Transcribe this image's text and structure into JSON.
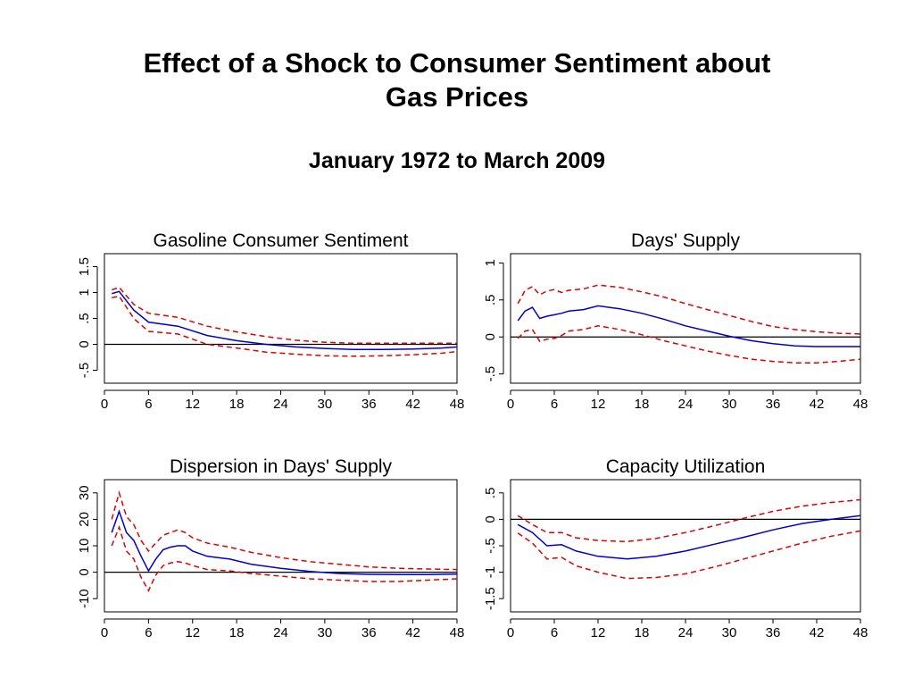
{
  "page": {
    "title_line1": "Effect of a Shock to Consumer Sentiment about",
    "title_line2": "Gas Prices",
    "subtitle": "January 1972 to March 2009"
  },
  "colors": {
    "estimate": "#0000cc",
    "band": "#dd0000",
    "axis": "#000000"
  },
  "chart_data": [
    {
      "type": "line",
      "title": "Gasoline Consumer Sentiment",
      "xlabel": "",
      "ylabel": "",
      "xlim": [
        0,
        48
      ],
      "ylim": [
        -0.75,
        1.75
      ],
      "xticks": [
        0,
        6,
        12,
        18,
        24,
        30,
        36,
        42,
        48
      ],
      "xtick_labels": [
        "0",
        "6",
        "12",
        "18",
        "24",
        "30",
        "36",
        "42",
        "48"
      ],
      "yticks": [
        -0.5,
        0,
        0.5,
        1,
        1.5
      ],
      "ytick_labels": [
        "-.5",
        "0",
        ".5",
        "1",
        "1.5"
      ],
      "zero_line": true,
      "x": [
        1,
        2,
        4,
        6,
        10,
        14,
        18,
        22,
        26,
        30,
        34,
        38,
        42,
        46,
        48
      ],
      "series": [
        {
          "role": "estimate",
          "values": [
            0.98,
            1.02,
            0.66,
            0.43,
            0.35,
            0.17,
            0.07,
            0.0,
            -0.05,
            -0.08,
            -0.1,
            -0.1,
            -0.09,
            -0.07,
            -0.05
          ]
        },
        {
          "role": "upper",
          "values": [
            1.05,
            1.1,
            0.77,
            0.6,
            0.52,
            0.35,
            0.24,
            0.15,
            0.08,
            0.04,
            0.02,
            0.02,
            0.02,
            0.02,
            0.02
          ]
        },
        {
          "role": "lower",
          "values": [
            0.9,
            0.93,
            0.5,
            0.25,
            0.2,
            0.0,
            -0.07,
            -0.15,
            -0.19,
            -0.22,
            -0.23,
            -0.22,
            -0.2,
            -0.17,
            -0.14
          ]
        }
      ]
    },
    {
      "type": "line",
      "title": "Days' Supply",
      "xlabel": "",
      "ylabel": "",
      "xlim": [
        0,
        48
      ],
      "ylim": [
        -0.625,
        1.125
      ],
      "xticks": [
        0,
        6,
        12,
        18,
        24,
        30,
        36,
        42,
        48
      ],
      "xtick_labels": [
        "0",
        "6",
        "12",
        "18",
        "24",
        "30",
        "36",
        "42",
        "48"
      ],
      "yticks": [
        -0.5,
        0,
        0.5,
        1
      ],
      "ytick_labels": [
        "-.5",
        "0",
        ".5",
        "1"
      ],
      "zero_line": true,
      "x": [
        1,
        2,
        3,
        4,
        5,
        6,
        7,
        8,
        10,
        12,
        15,
        18,
        21,
        24,
        27,
        30,
        33,
        36,
        39,
        42,
        45,
        48
      ],
      "series": [
        {
          "role": "estimate",
          "values": [
            0.22,
            0.35,
            0.4,
            0.25,
            0.28,
            0.3,
            0.32,
            0.35,
            0.37,
            0.42,
            0.38,
            0.32,
            0.24,
            0.15,
            0.08,
            0.01,
            -0.05,
            -0.09,
            -0.12,
            -0.13,
            -0.13,
            -0.13
          ]
        },
        {
          "role": "upper",
          "values": [
            0.45,
            0.63,
            0.68,
            0.57,
            0.62,
            0.64,
            0.6,
            0.63,
            0.65,
            0.7,
            0.67,
            0.61,
            0.54,
            0.45,
            0.37,
            0.29,
            0.21,
            0.14,
            0.1,
            0.07,
            0.05,
            0.04
          ]
        },
        {
          "role": "lower",
          "values": [
            -0.02,
            0.08,
            0.1,
            -0.06,
            -0.03,
            -0.02,
            0.02,
            0.08,
            0.1,
            0.15,
            0.1,
            0.03,
            -0.05,
            -0.12,
            -0.19,
            -0.25,
            -0.3,
            -0.33,
            -0.35,
            -0.35,
            -0.33,
            -0.3
          ]
        }
      ]
    },
    {
      "type": "line",
      "title": "Dispersion in Days' Supply",
      "xlabel": "",
      "ylabel": "",
      "xlim": [
        0,
        48
      ],
      "ylim": [
        -15,
        35
      ],
      "xticks": [
        0,
        6,
        12,
        18,
        24,
        30,
        36,
        42,
        48
      ],
      "xtick_labels": [
        "0",
        "6",
        "12",
        "18",
        "24",
        "30",
        "36",
        "42",
        "48"
      ],
      "yticks": [
        -10,
        0,
        10,
        20,
        30
      ],
      "ytick_labels": [
        "-10",
        "0",
        "10",
        "20",
        "30"
      ],
      "zero_line": true,
      "x": [
        1,
        2,
        3,
        4,
        5,
        6,
        7,
        8,
        9,
        10,
        11,
        12,
        14,
        17,
        20,
        24,
        28,
        32,
        36,
        40,
        44,
        48
      ],
      "series": [
        {
          "role": "estimate",
          "values": [
            15.0,
            23.0,
            15.0,
            12.0,
            6.0,
            0.5,
            5.0,
            8.5,
            9.5,
            10.0,
            10.0,
            8.0,
            6.0,
            5.0,
            3.0,
            1.5,
            0.3,
            -0.5,
            -0.8,
            -0.9,
            -0.9,
            -0.7
          ]
        },
        {
          "role": "upper",
          "values": [
            20.0,
            30.0,
            21.0,
            18.0,
            12.0,
            8.0,
            11.0,
            14.0,
            15.0,
            16.0,
            15.0,
            13.0,
            11.0,
            9.5,
            7.5,
            5.5,
            4.0,
            3.0,
            2.0,
            1.5,
            1.2,
            1.0
          ]
        },
        {
          "role": "lower",
          "values": [
            10.0,
            17.0,
            8.0,
            5.0,
            -2.0,
            -7.0,
            -1.0,
            2.5,
            3.5,
            4.0,
            3.5,
            2.5,
            1.0,
            0.5,
            -0.5,
            -1.5,
            -2.5,
            -3.0,
            -3.5,
            -3.5,
            -3.0,
            -2.5
          ]
        }
      ]
    },
    {
      "type": "line",
      "title": "Capacity Utilization",
      "xlabel": "",
      "ylabel": "",
      "xlim": [
        0,
        48
      ],
      "ylim": [
        -1.75,
        0.75
      ],
      "xticks": [
        0,
        6,
        12,
        18,
        24,
        30,
        36,
        42,
        48
      ],
      "xtick_labels": [
        "0",
        "6",
        "12",
        "18",
        "24",
        "30",
        "36",
        "42",
        "48"
      ],
      "yticks": [
        -1.5,
        -1,
        -0.5,
        0,
        0.5
      ],
      "ytick_labels": [
        "-1.5",
        "-1",
        "-.5",
        "0",
        ".5"
      ],
      "zero_line": true,
      "x": [
        1,
        3,
        5,
        7,
        9,
        12,
        16,
        20,
        24,
        28,
        32,
        36,
        40,
        44,
        48
      ],
      "series": [
        {
          "role": "estimate",
          "values": [
            -0.1,
            -0.25,
            -0.5,
            -0.48,
            -0.6,
            -0.7,
            -0.75,
            -0.7,
            -0.6,
            -0.47,
            -0.34,
            -0.2,
            -0.08,
            0.0,
            0.07
          ]
        },
        {
          "role": "upper",
          "values": [
            0.07,
            -0.1,
            -0.25,
            -0.25,
            -0.35,
            -0.4,
            -0.42,
            -0.36,
            -0.25,
            -0.12,
            0.02,
            0.15,
            0.25,
            0.32,
            0.37
          ]
        },
        {
          "role": "lower",
          "values": [
            -0.26,
            -0.45,
            -0.75,
            -0.72,
            -0.88,
            -1.0,
            -1.12,
            -1.1,
            -1.03,
            -0.9,
            -0.75,
            -0.6,
            -0.45,
            -0.32,
            -0.22
          ]
        }
      ]
    }
  ]
}
